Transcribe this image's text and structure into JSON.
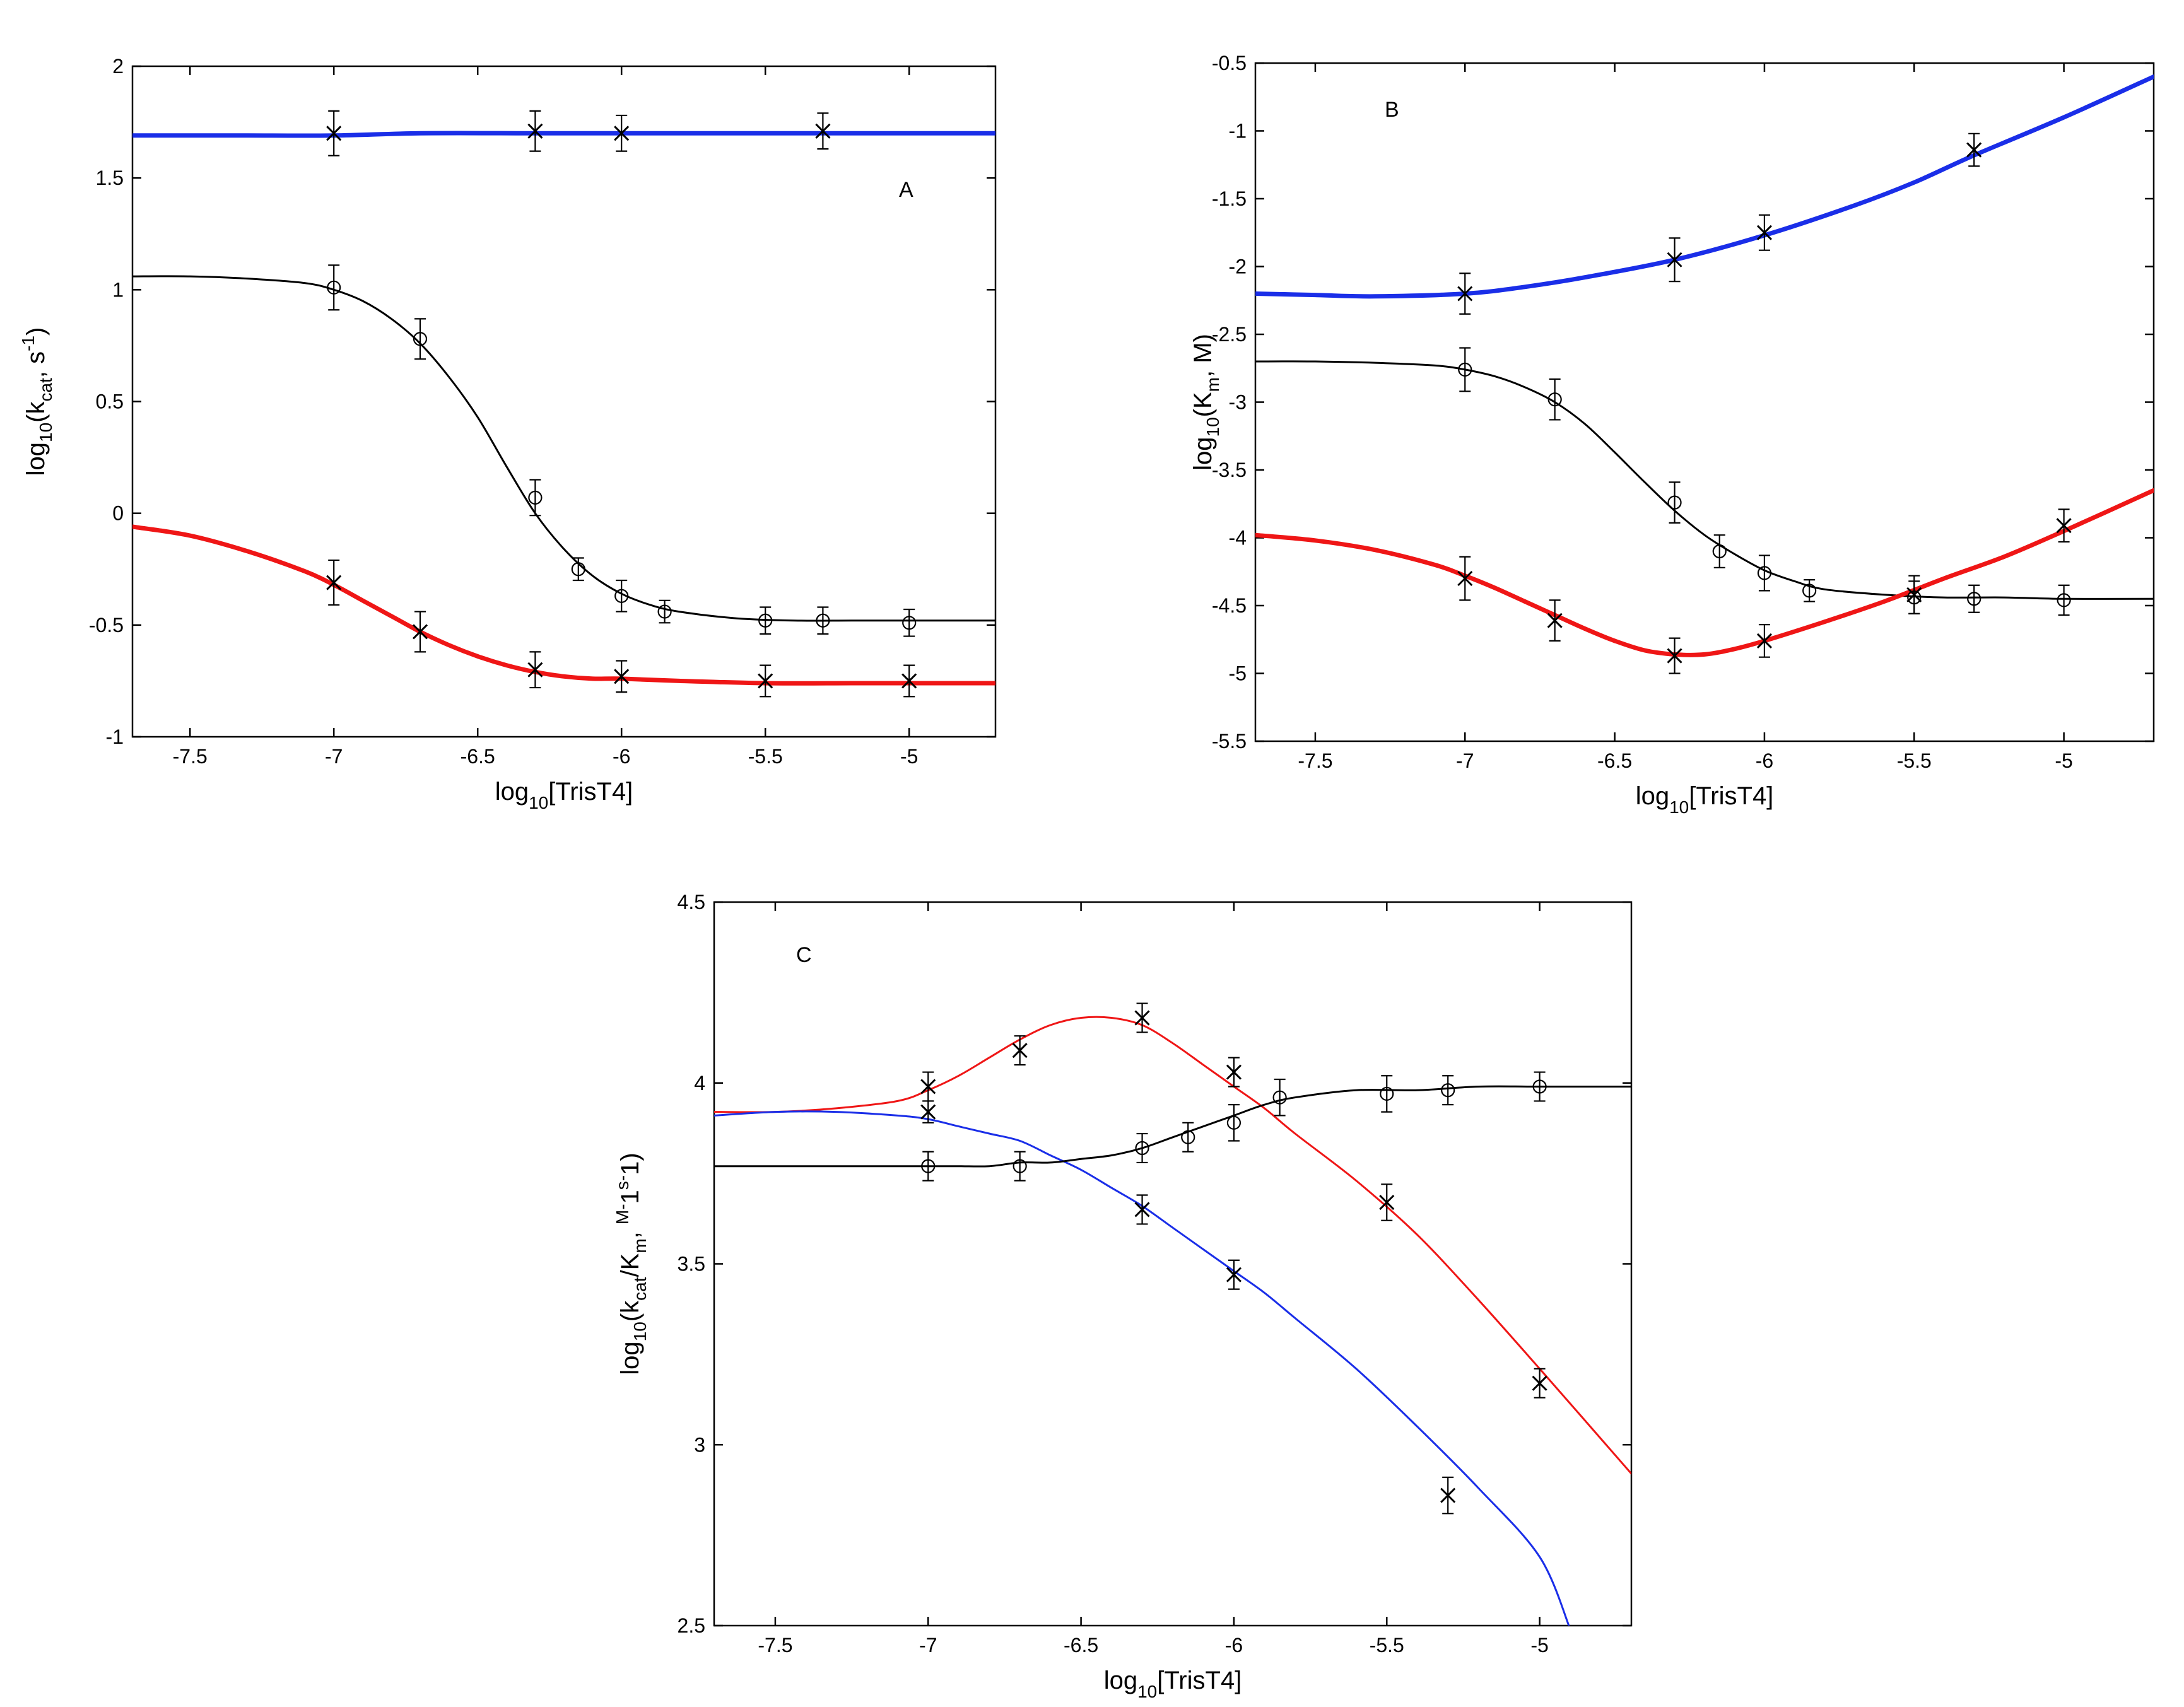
{
  "chart_data": [
    {
      "type": "line",
      "panel": "A",
      "panel_label": "A",
      "xlabel": "log10[TrisT4]",
      "ylabel": "log10(kcat, s-1)",
      "xlim": [
        -7.7,
        -4.7
      ],
      "ylim": [
        -1,
        2
      ],
      "xticks": [
        -7.5,
        -7,
        -6.5,
        -6,
        -5.5,
        -5
      ],
      "yticks": [
        -1,
        -0.5,
        0,
        0.5,
        1,
        1.5,
        2
      ],
      "series": [
        {
          "name": "blue fit",
          "color": "#1a2ee8",
          "kind": "line",
          "width": "thick",
          "x": [
            -7.7,
            -7.5,
            -7.3,
            -7.0,
            -6.7,
            -6.3,
            -6.0,
            -5.5,
            -5.3,
            -5.0,
            -4.7
          ],
          "y": [
            1.69,
            1.69,
            1.69,
            1.69,
            1.7,
            1.7,
            1.7,
            1.7,
            1.7,
            1.7,
            1.7
          ]
        },
        {
          "name": "blue data",
          "color": "#000000",
          "kind": "points",
          "marker": "x",
          "x": [
            -7.0,
            -6.3,
            -6.0,
            -5.3
          ],
          "y": [
            1.7,
            1.71,
            1.7,
            1.71
          ],
          "err": [
            0.1,
            0.09,
            0.08,
            0.08
          ]
        },
        {
          "name": "black fit",
          "color": "#000000",
          "kind": "line",
          "width": "thin",
          "x": [
            -7.7,
            -7.5,
            -7.3,
            -7.1,
            -7.0,
            -6.9,
            -6.8,
            -6.7,
            -6.6,
            -6.5,
            -6.4,
            -6.3,
            -6.2,
            -6.1,
            -6.0,
            -5.9,
            -5.8,
            -5.6,
            -5.4,
            -5.2,
            -5.0,
            -4.7
          ],
          "y": [
            1.06,
            1.06,
            1.05,
            1.03,
            1.0,
            0.95,
            0.87,
            0.76,
            0.61,
            0.43,
            0.21,
            0.0,
            -0.16,
            -0.28,
            -0.36,
            -0.41,
            -0.44,
            -0.47,
            -0.48,
            -0.48,
            -0.48,
            -0.48
          ]
        },
        {
          "name": "black data",
          "color": "#000000",
          "kind": "points",
          "marker": "o",
          "x": [
            -7.0,
            -6.7,
            -6.3,
            -6.15,
            -6.0,
            -5.85,
            -5.5,
            -5.3,
            -5.0
          ],
          "y": [
            1.01,
            0.78,
            0.07,
            -0.25,
            -0.37,
            -0.44,
            -0.48,
            -0.48,
            -0.49
          ],
          "err": [
            0.1,
            0.09,
            0.08,
            0.05,
            0.07,
            0.05,
            0.06,
            0.06,
            0.06
          ]
        },
        {
          "name": "red fit",
          "color": "#ef1616",
          "kind": "line",
          "width": "thick",
          "x": [
            -7.7,
            -7.5,
            -7.3,
            -7.1,
            -7.0,
            -6.9,
            -6.8,
            -6.7,
            -6.6,
            -6.5,
            -6.4,
            -6.3,
            -6.2,
            -6.1,
            -6.0,
            -5.8,
            -5.5,
            -5.2,
            -5.0,
            -4.7
          ],
          "y": [
            -0.06,
            -0.1,
            -0.17,
            -0.26,
            -0.32,
            -0.39,
            -0.46,
            -0.53,
            -0.59,
            -0.64,
            -0.68,
            -0.71,
            -0.73,
            -0.74,
            -0.74,
            -0.75,
            -0.76,
            -0.76,
            -0.76,
            -0.76
          ]
        },
        {
          "name": "red data",
          "color": "#000000",
          "kind": "points",
          "marker": "x",
          "x": [
            -7.0,
            -6.7,
            -6.3,
            -6.0,
            -5.5,
            -5.0
          ],
          "y": [
            -0.31,
            -0.53,
            -0.7,
            -0.73,
            -0.75,
            -0.75
          ],
          "err": [
            0.1,
            0.09,
            0.08,
            0.07,
            0.07,
            0.07
          ]
        }
      ]
    },
    {
      "type": "line",
      "panel": "B",
      "panel_label": "B",
      "xlabel": "log10[TrisT4]",
      "ylabel": "log10(Km, M)",
      "xlim": [
        -7.7,
        -4.7
      ],
      "ylim": [
        -5.5,
        -0.5
      ],
      "xticks": [
        -7.5,
        -7,
        -6.5,
        -6,
        -5.5,
        -5
      ],
      "yticks": [
        -5.5,
        -5,
        -4.5,
        -4,
        -3.5,
        -3,
        -2.5,
        -2,
        -1.5,
        -1,
        -0.5
      ],
      "series": [
        {
          "name": "blue fit",
          "color": "#1a2ee8",
          "kind": "line",
          "width": "thick",
          "x": [
            -7.7,
            -7.5,
            -7.3,
            -7.0,
            -6.8,
            -6.6,
            -6.3,
            -6.0,
            -5.7,
            -5.5,
            -5.3,
            -5.0,
            -4.7
          ],
          "y": [
            -2.2,
            -2.21,
            -2.22,
            -2.2,
            -2.15,
            -2.08,
            -1.95,
            -1.77,
            -1.55,
            -1.38,
            -1.18,
            -0.9,
            -0.6
          ]
        },
        {
          "name": "blue data",
          "color": "#000000",
          "kind": "points",
          "marker": "x",
          "x": [
            -7.0,
            -6.3,
            -6.0,
            -5.3
          ],
          "y": [
            -2.2,
            -1.95,
            -1.75,
            -1.14
          ],
          "err": [
            0.15,
            0.16,
            0.13,
            0.12
          ]
        },
        {
          "name": "black fit",
          "color": "#000000",
          "kind": "line",
          "width": "thin",
          "x": [
            -7.7,
            -7.5,
            -7.3,
            -7.1,
            -7.0,
            -6.9,
            -6.8,
            -6.7,
            -6.6,
            -6.5,
            -6.4,
            -6.3,
            -6.2,
            -6.1,
            -6.0,
            -5.9,
            -5.8,
            -5.6,
            -5.4,
            -5.2,
            -5.0,
            -4.7
          ],
          "y": [
            -2.7,
            -2.7,
            -2.71,
            -2.73,
            -2.76,
            -2.81,
            -2.89,
            -3.0,
            -3.16,
            -3.37,
            -3.59,
            -3.8,
            -3.98,
            -4.12,
            -4.24,
            -4.32,
            -4.38,
            -4.42,
            -4.44,
            -4.44,
            -4.45,
            -4.45
          ]
        },
        {
          "name": "black data",
          "color": "#000000",
          "kind": "points",
          "marker": "o",
          "x": [
            -7.0,
            -6.7,
            -6.3,
            -6.15,
            -6.0,
            -5.85,
            -5.5,
            -5.3,
            -5.0
          ],
          "y": [
            -2.76,
            -2.98,
            -3.74,
            -4.1,
            -4.26,
            -4.39,
            -4.44,
            -4.45,
            -4.46
          ],
          "err": [
            0.16,
            0.15,
            0.15,
            0.12,
            0.13,
            0.08,
            0.12,
            0.1,
            0.11
          ]
        },
        {
          "name": "red fit",
          "color": "#ef1616",
          "kind": "line",
          "width": "thick",
          "x": [
            -7.7,
            -7.5,
            -7.3,
            -7.1,
            -7.0,
            -6.9,
            -6.8,
            -6.7,
            -6.6,
            -6.5,
            -6.4,
            -6.3,
            -6.2,
            -6.1,
            -6.0,
            -5.8,
            -5.6,
            -5.4,
            -5.2,
            -5.0,
            -4.7
          ],
          "y": [
            -3.98,
            -4.02,
            -4.09,
            -4.2,
            -4.28,
            -4.37,
            -4.47,
            -4.57,
            -4.67,
            -4.76,
            -4.83,
            -4.86,
            -4.86,
            -4.82,
            -4.76,
            -4.62,
            -4.47,
            -4.3,
            -4.14,
            -3.95,
            -3.65
          ]
        },
        {
          "name": "red data",
          "color": "#000000",
          "kind": "points",
          "marker": "x",
          "x": [
            -7.0,
            -6.7,
            -6.3,
            -6.0,
            -5.5,
            -5.0
          ],
          "y": [
            -4.3,
            -4.61,
            -4.87,
            -4.76,
            -4.42,
            -3.91
          ],
          "err": [
            0.16,
            0.15,
            0.13,
            0.12,
            0.14,
            0.12
          ]
        }
      ]
    },
    {
      "type": "line",
      "panel": "C",
      "panel_label": "C",
      "xlabel": "log10[TrisT4]",
      "ylabel": "log10(kcat/Km, M-1s-1)",
      "xlim": [
        -7.7,
        -4.7
      ],
      "ylim": [
        2.5,
        4.5
      ],
      "xticks": [
        -7.5,
        -7,
        -6.5,
        -6,
        -5.5,
        -5
      ],
      "yticks": [
        2.5,
        3,
        3.5,
        4,
        4.5
      ],
      "series": [
        {
          "name": "red fit",
          "color": "#ef1616",
          "kind": "line",
          "width": "thin",
          "x": [
            -7.7,
            -7.5,
            -7.3,
            -7.1,
            -7.0,
            -6.9,
            -6.8,
            -6.7,
            -6.6,
            -6.5,
            -6.4,
            -6.3,
            -6.2,
            -6.1,
            -6.0,
            -5.9,
            -5.8,
            -5.6,
            -5.4,
            -5.2,
            -5.0,
            -4.7
          ],
          "y": [
            3.92,
            3.92,
            3.93,
            3.95,
            3.98,
            4.02,
            4.07,
            4.12,
            4.16,
            4.18,
            4.18,
            4.16,
            4.11,
            4.05,
            3.99,
            3.93,
            3.86,
            3.73,
            3.58,
            3.4,
            3.21,
            2.92
          ]
        },
        {
          "name": "red data",
          "color": "#000000",
          "kind": "points",
          "marker": "x",
          "x": [
            -7.0,
            -6.7,
            -6.3,
            -6.0,
            -5.5,
            -5.0
          ],
          "y": [
            3.99,
            4.09,
            4.18,
            4.03,
            3.67,
            3.17
          ],
          "err": [
            0.04,
            0.04,
            0.04,
            0.04,
            0.05,
            0.04
          ]
        },
        {
          "name": "blue fit",
          "color": "#1a2ee8",
          "kind": "line",
          "width": "thin",
          "x": [
            -7.7,
            -7.5,
            -7.3,
            -7.1,
            -7.0,
            -6.9,
            -6.8,
            -6.7,
            -6.6,
            -6.5,
            -6.4,
            -6.3,
            -6.2,
            -6.1,
            -6.0,
            -5.9,
            -5.8,
            -5.6,
            -5.4,
            -5.2,
            -5.0,
            -4.9
          ],
          "y": [
            3.91,
            3.92,
            3.92,
            3.91,
            3.9,
            3.88,
            3.86,
            3.84,
            3.8,
            3.76,
            3.71,
            3.66,
            3.6,
            3.54,
            3.48,
            3.42,
            3.35,
            3.21,
            3.05,
            2.88,
            2.69,
            2.49
          ]
        },
        {
          "name": "blue data",
          "color": "#000000",
          "kind": "points",
          "marker": "x",
          "x": [
            -7.0,
            -6.3,
            -6.0,
            -5.3
          ],
          "y": [
            3.92,
            3.65,
            3.47,
            2.86
          ],
          "err": [
            0.03,
            0.04,
            0.04,
            0.05
          ]
        },
        {
          "name": "black fit",
          "color": "#000000",
          "kind": "line",
          "width": "thin",
          "x": [
            -7.7,
            -7.5,
            -7.3,
            -7.1,
            -7.0,
            -6.9,
            -6.8,
            -6.7,
            -6.6,
            -6.5,
            -6.4,
            -6.3,
            -6.2,
            -6.1,
            -6.0,
            -5.9,
            -5.8,
            -5.6,
            -5.4,
            -5.2,
            -5.0,
            -4.7
          ],
          "y": [
            3.77,
            3.77,
            3.77,
            3.77,
            3.77,
            3.77,
            3.77,
            3.78,
            3.78,
            3.79,
            3.8,
            3.82,
            3.85,
            3.88,
            3.91,
            3.94,
            3.96,
            3.98,
            3.98,
            3.99,
            3.99,
            3.99
          ]
        },
        {
          "name": "black data",
          "color": "#000000",
          "kind": "points",
          "marker": "o",
          "x": [
            -7.0,
            -6.7,
            -6.3,
            -6.15,
            -6.0,
            -5.85,
            -5.5,
            -5.3,
            -5.0
          ],
          "y": [
            3.77,
            3.77,
            3.82,
            3.85,
            3.89,
            3.96,
            3.97,
            3.98,
            3.99
          ],
          "err": [
            0.04,
            0.04,
            0.04,
            0.04,
            0.05,
            0.05,
            0.05,
            0.04,
            0.04
          ]
        }
      ]
    }
  ]
}
